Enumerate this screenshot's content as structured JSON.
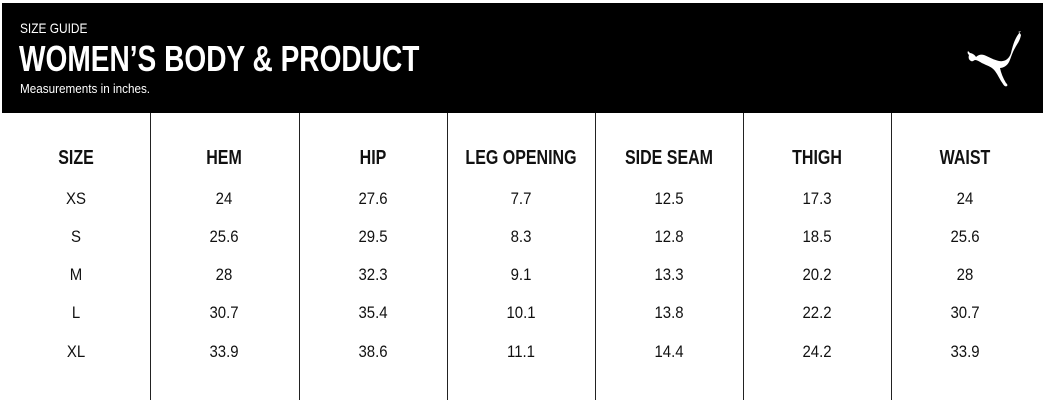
{
  "header": {
    "kicker": "SIZE GUIDE",
    "title": "WOMEN’S BODY & PRODUCT",
    "subtitle": "Measurements in inches.",
    "logo": "puma-cat-logo",
    "background": "#000000"
  },
  "table": {
    "columns": [
      "SIZE",
      "HEM",
      "HIP",
      "LEG OPENING",
      "SIDE SEAM",
      "THIGH",
      "WAIST"
    ],
    "rows": [
      [
        "XS",
        "24",
        "27.6",
        "7.7",
        "12.5",
        "17.3",
        "24"
      ],
      [
        "S",
        "25.6",
        "29.5",
        "8.3",
        "12.8",
        "18.5",
        "25.6"
      ],
      [
        "M",
        "28",
        "32.3",
        "9.1",
        "13.3",
        "20.2",
        "28"
      ],
      [
        "L",
        "30.7",
        "35.4",
        "10.1",
        "13.8",
        "22.2",
        "30.7"
      ],
      [
        "XL",
        "33.9",
        "38.6",
        "11.1",
        "14.4",
        "24.2",
        "33.9"
      ]
    ]
  }
}
